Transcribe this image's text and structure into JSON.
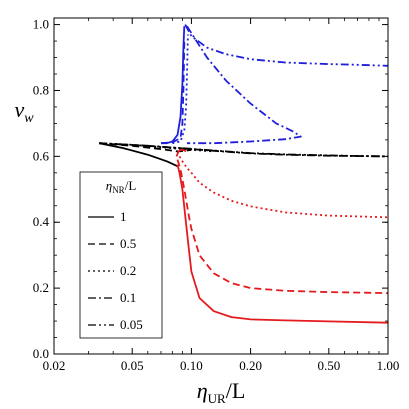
{
  "chart_data": {
    "type": "line",
    "title": "",
    "xlabel": "η_UR/L",
    "ylabel": "v_w",
    "xscale": "log",
    "xlim": [
      0.02,
      1.0
    ],
    "ylim": [
      0.0,
      1.02
    ],
    "x_ticks": [
      0.02,
      0.05,
      0.1,
      0.2,
      0.5,
      1.0
    ],
    "x_tick_labels": [
      "0.02",
      "0.05",
      "0.10",
      "0.20",
      "0.50",
      "1.00"
    ],
    "y_ticks": [
      0.0,
      0.2,
      0.4,
      0.6,
      0.8,
      1.0
    ],
    "y_tick_labels": [
      "0.0",
      "0.2",
      "0.4",
      "0.6",
      "0.8",
      "1.0"
    ],
    "grid": false,
    "legend": {
      "title": "η_NR/L",
      "placement": "left",
      "entries": [
        {
          "label": "1",
          "dash": "solid"
        },
        {
          "label": "0.5",
          "dash": "dashed"
        },
        {
          "label": "0.2",
          "dash": "dotted"
        },
        {
          "label": "0.1",
          "dash": "dashdot"
        },
        {
          "label": "0.05",
          "dash": "dashdotdot"
        }
      ]
    },
    "colors": {
      "red": "#e41a1c",
      "blue": "#1f1fdb",
      "black": "#000000"
    },
    "series": [
      {
        "key": "black-common",
        "color": "black",
        "dash": "solid",
        "x": [
          0.034,
          0.045,
          0.06,
          0.075,
          0.085
        ],
        "y": [
          0.64,
          0.625,
          0.605,
          0.585,
          0.57
        ]
      },
      {
        "key": "black-05",
        "color": "black",
        "dash": "dashed",
        "x": [
          0.034,
          0.05,
          0.07,
          0.085,
          0.09,
          0.1
        ],
        "y": [
          0.64,
          0.632,
          0.622,
          0.615,
          0.616,
          0.62
        ]
      },
      {
        "key": "black-02",
        "color": "black",
        "dash": "dotted",
        "x": [
          0.034,
          0.05,
          0.07,
          0.09,
          0.11,
          0.13
        ],
        "y": [
          0.64,
          0.635,
          0.628,
          0.622,
          0.618,
          0.615
        ]
      },
      {
        "key": "black-01",
        "color": "black",
        "dash": "dashdot",
        "x": [
          0.034,
          0.06,
          0.1,
          0.15,
          0.2,
          0.3,
          0.5,
          0.7,
          1.0
        ],
        "y": [
          0.64,
          0.632,
          0.622,
          0.614,
          0.609,
          0.605,
          0.602,
          0.601,
          0.6
        ]
      },
      {
        "key": "black-005",
        "color": "black",
        "dash": "dashdotdot",
        "x": [
          0.034,
          0.06,
          0.1,
          0.15,
          0.2,
          0.3,
          0.5,
          0.7,
          1.0
        ],
        "y": [
          0.64,
          0.632,
          0.623,
          0.615,
          0.61,
          0.606,
          0.603,
          0.601,
          0.6
        ]
      },
      {
        "key": "red-1",
        "color": "red",
        "dash": "solid",
        "x": [
          0.085,
          0.087,
          0.09,
          0.093,
          0.097,
          0.1,
          0.11,
          0.13,
          0.16,
          0.2,
          0.3,
          0.5,
          1.0
        ],
        "y": [
          0.575,
          0.55,
          0.5,
          0.42,
          0.32,
          0.25,
          0.17,
          0.13,
          0.112,
          0.105,
          0.102,
          0.099,
          0.095
        ]
      },
      {
        "key": "red-05",
        "color": "red",
        "dash": "dashed",
        "x": [
          0.085,
          0.088,
          0.092,
          0.097,
          0.1,
          0.11,
          0.13,
          0.16,
          0.2,
          0.3,
          0.5,
          1.0
        ],
        "y": [
          0.59,
          0.56,
          0.5,
          0.42,
          0.38,
          0.3,
          0.245,
          0.215,
          0.2,
          0.192,
          0.188,
          0.185
        ]
      },
      {
        "key": "red-02",
        "color": "red",
        "dash": "dotted",
        "x": [
          0.087,
          0.09,
          0.095,
          0.1,
          0.11,
          0.13,
          0.16,
          0.2,
          0.3,
          0.5,
          1.0
        ],
        "y": [
          0.6,
          0.585,
          0.565,
          0.55,
          0.52,
          0.49,
          0.465,
          0.448,
          0.43,
          0.42,
          0.415
        ]
      },
      {
        "key": "red-loop",
        "color": "red",
        "dash": "solid",
        "x": [
          0.084,
          0.086,
          0.088,
          0.09,
          0.092,
          0.094
        ],
        "y": [
          0.6,
          0.615,
          0.62,
          0.62,
          0.618,
          0.615
        ]
      },
      {
        "key": "blue-1",
        "color": "blue",
        "dash": "solid",
        "x": [
          0.07,
          0.075,
          0.08,
          0.085,
          0.088,
          0.09,
          0.091,
          0.092
        ],
        "y": [
          0.64,
          0.64,
          0.645,
          0.665,
          0.72,
          0.82,
          0.93,
          0.995
        ]
      },
      {
        "key": "blue-05",
        "color": "blue",
        "dash": "dashed",
        "x": [
          0.07,
          0.08,
          0.088,
          0.09,
          0.091,
          0.092
        ],
        "y": [
          0.64,
          0.643,
          0.655,
          0.7,
          0.8,
          0.95
        ]
      },
      {
        "key": "blue-02",
        "color": "blue",
        "dash": "dotted",
        "x": [
          0.08,
          0.088,
          0.092,
          0.094,
          0.095,
          0.096
        ],
        "y": [
          0.64,
          0.645,
          0.68,
          0.75,
          0.85,
          0.97
        ]
      },
      {
        "key": "blue-01",
        "color": "blue",
        "dash": "dashdot",
        "x": [
          0.095,
          0.12,
          0.15,
          0.2,
          0.27,
          0.33,
          0.36,
          0.3,
          0.2,
          0.13,
          0.1,
          0.095
        ],
        "y": [
          0.995,
          0.9,
          0.83,
          0.76,
          0.7,
          0.675,
          0.66,
          0.652,
          0.645,
          0.64,
          0.64,
          0.64
        ]
      },
      {
        "key": "blue-005",
        "color": "blue",
        "dash": "dashdotdot",
        "x": [
          0.093,
          0.1,
          0.12,
          0.15,
          0.2,
          0.3,
          0.5,
          0.7,
          1.0
        ],
        "y": [
          1.0,
          0.965,
          0.93,
          0.91,
          0.895,
          0.885,
          0.88,
          0.878,
          0.875
        ]
      }
    ]
  }
}
